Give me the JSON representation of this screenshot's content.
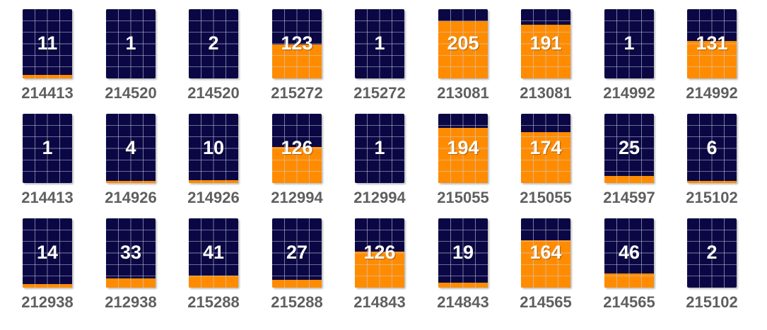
{
  "colors": {
    "panel": "#0b0744",
    "fill": "#ff8c00",
    "grid": "#c9d2e6",
    "label": "#5f5f5f",
    "count": "#ffffff"
  },
  "max_count": 215,
  "rows": [
    [
      {
        "count": "11",
        "id": "214413",
        "fill_fraction": 0.05
      },
      {
        "count": "1",
        "id": "214520",
        "fill_fraction": 0.0
      },
      {
        "count": "2",
        "id": "214520",
        "fill_fraction": 0.0
      },
      {
        "count": "123",
        "id": "215272",
        "fill_fraction": 0.49
      },
      {
        "count": "1",
        "id": "215272",
        "fill_fraction": 0.0
      },
      {
        "count": "205",
        "id": "213081",
        "fill_fraction": 0.83
      },
      {
        "count": "191",
        "id": "213081",
        "fill_fraction": 0.78
      },
      {
        "count": "1",
        "id": "214992",
        "fill_fraction": 0.0
      },
      {
        "count": "131",
        "id": "214992",
        "fill_fraction": 0.54
      }
    ],
    [
      {
        "count": "1",
        "id": "214413",
        "fill_fraction": 0.0
      },
      {
        "count": "4",
        "id": "214926",
        "fill_fraction": 0.02
      },
      {
        "count": "10",
        "id": "214926",
        "fill_fraction": 0.04
      },
      {
        "count": "126",
        "id": "212994",
        "fill_fraction": 0.52
      },
      {
        "count": "1",
        "id": "212994",
        "fill_fraction": 0.0
      },
      {
        "count": "194",
        "id": "215055",
        "fill_fraction": 0.8
      },
      {
        "count": "174",
        "id": "215055",
        "fill_fraction": 0.73
      },
      {
        "count": "25",
        "id": "214597",
        "fill_fraction": 0.1
      },
      {
        "count": "6",
        "id": "215102",
        "fill_fraction": 0.02
      }
    ],
    [
      {
        "count": "14",
        "id": "212938",
        "fill_fraction": 0.05
      },
      {
        "count": "33",
        "id": "212938",
        "fill_fraction": 0.13
      },
      {
        "count": "41",
        "id": "215288",
        "fill_fraction": 0.17
      },
      {
        "count": "27",
        "id": "215288",
        "fill_fraction": 0.11
      },
      {
        "count": "126",
        "id": "214843",
        "fill_fraction": 0.52
      },
      {
        "count": "19",
        "id": "214843",
        "fill_fraction": 0.07
      },
      {
        "count": "164",
        "id": "214565",
        "fill_fraction": 0.68
      },
      {
        "count": "46",
        "id": "214565",
        "fill_fraction": 0.2
      },
      {
        "count": "2",
        "id": "215102",
        "fill_fraction": 0.0
      }
    ]
  ]
}
